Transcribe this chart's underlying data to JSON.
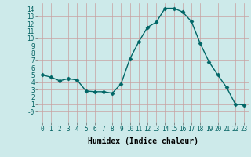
{
  "x": [
    0,
    1,
    2,
    3,
    4,
    5,
    6,
    7,
    8,
    9,
    10,
    11,
    12,
    13,
    14,
    15,
    16,
    17,
    18,
    19,
    20,
    21,
    22,
    23
  ],
  "y": [
    5.0,
    4.7,
    4.2,
    4.5,
    4.3,
    2.8,
    2.7,
    2.7,
    2.5,
    3.8,
    7.2,
    9.5,
    11.5,
    12.2,
    14.1,
    14.1,
    13.6,
    12.3,
    9.3,
    6.8,
    5.0,
    3.3,
    1.0,
    0.9
  ],
  "line_color": "#006666",
  "marker": "D",
  "marker_size": 2.5,
  "bg_color": "#cdeaea",
  "grid_color": "#b8d8d8",
  "xlabel": "Humidex (Indice chaleur)",
  "xlim": [
    -0.5,
    23.5
  ],
  "ylim": [
    -1.5,
    14.8
  ],
  "yticks": [
    14,
    13,
    12,
    11,
    10,
    9,
    8,
    7,
    6,
    5,
    4,
    3,
    2,
    1,
    0
  ],
  "ytick_labels": [
    "14",
    "13",
    "12",
    "11",
    "10",
    "9",
    "8",
    "7",
    "6",
    "5",
    "4",
    "3",
    "2",
    "1",
    "-0"
  ],
  "xticks": [
    0,
    1,
    2,
    3,
    4,
    5,
    6,
    7,
    8,
    9,
    10,
    11,
    12,
    13,
    14,
    15,
    16,
    17,
    18,
    19,
    20,
    21,
    22,
    23
  ],
  "tick_fontsize": 5.5,
  "xlabel_fontsize": 7.0,
  "lw": 1.0
}
